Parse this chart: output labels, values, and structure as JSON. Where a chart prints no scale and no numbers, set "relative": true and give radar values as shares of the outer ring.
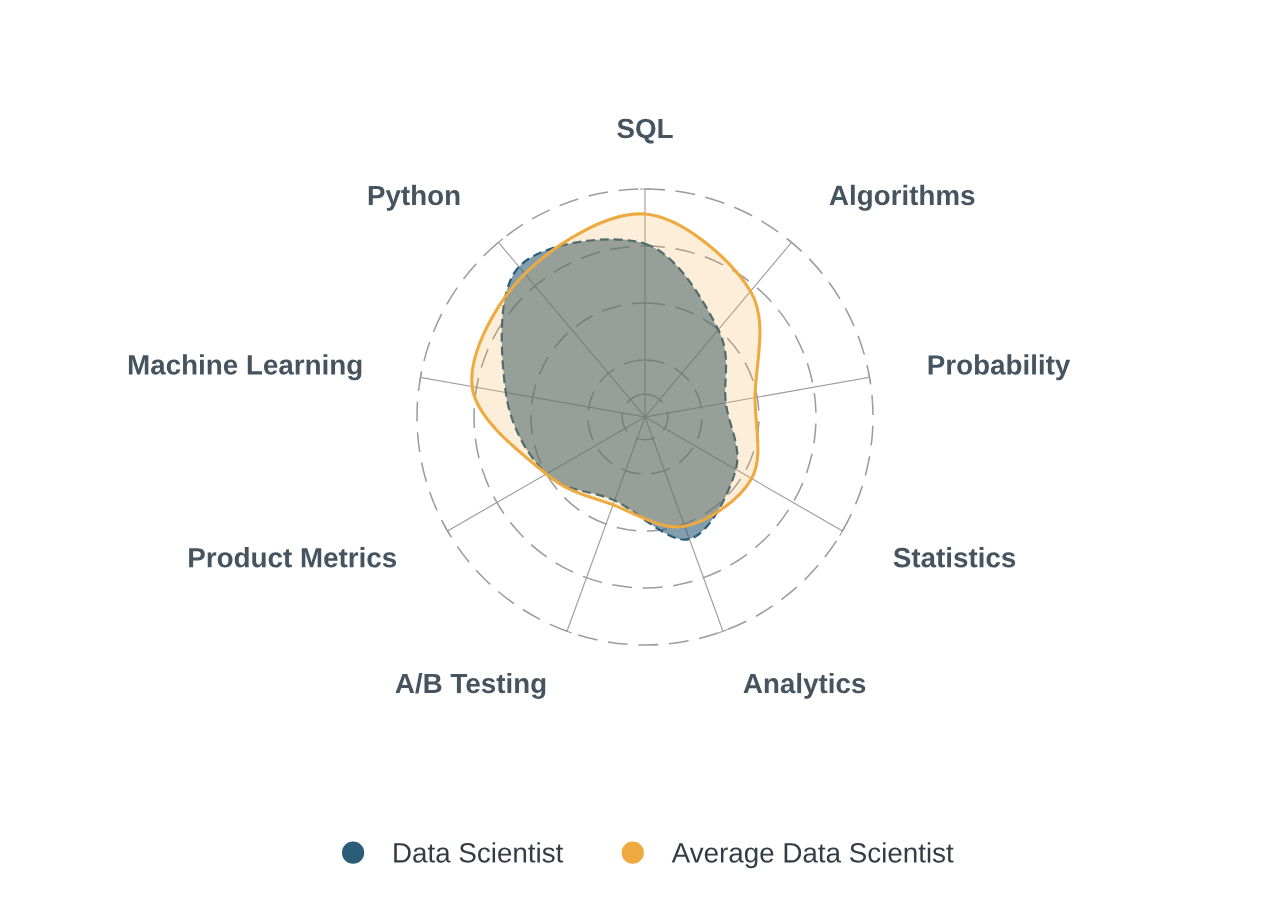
{
  "chart_data": {
    "type": "radar",
    "relative": true,
    "grid": true,
    "legend": "bottom",
    "categories": [
      "SQL",
      "Algorithms",
      "Probability",
      "Statistics",
      "Analytics",
      "A/B Testing",
      "Product Metrics",
      "Machine Learning",
      "Python"
    ],
    "series": [
      {
        "name": "Data Scientist",
        "color": "#2b5d78",
        "line_style": "dashed",
        "values": [
          0.76,
          0.5,
          0.36,
          0.46,
          0.57,
          0.39,
          0.5,
          0.62,
          0.86
        ]
      },
      {
        "name": "Average Data Scientist",
        "color": "#eeaa40",
        "line_style": "solid",
        "values": [
          0.89,
          0.72,
          0.49,
          0.54,
          0.51,
          0.41,
          0.5,
          0.77,
          0.82
        ]
      }
    ]
  }
}
